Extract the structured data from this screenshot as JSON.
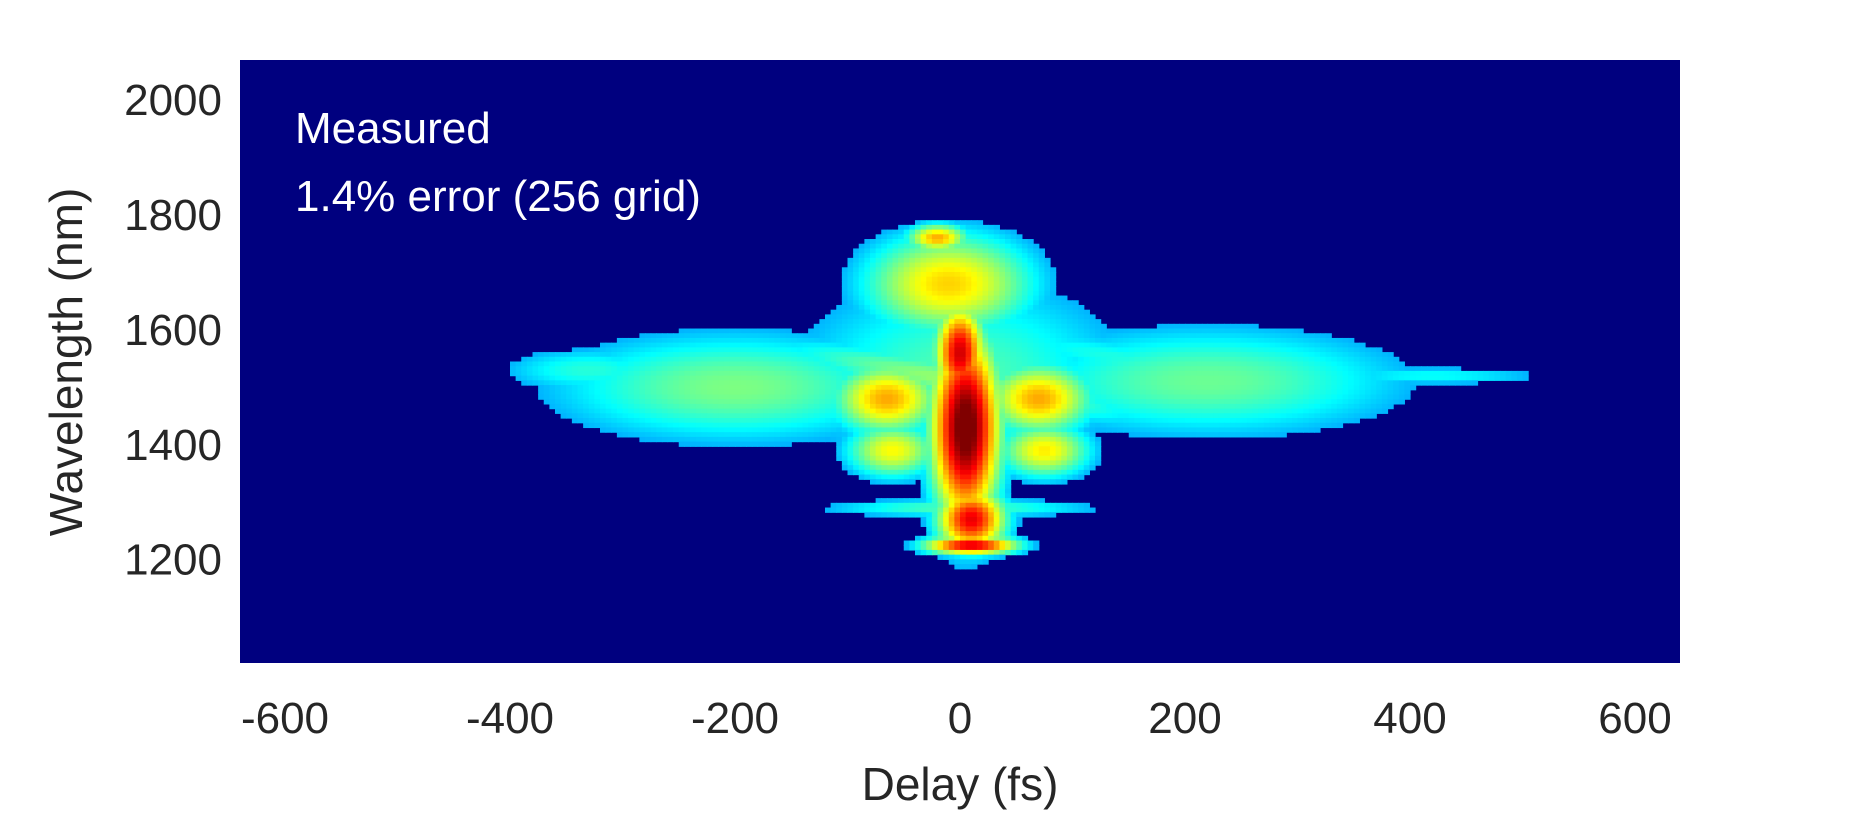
{
  "chart_data": {
    "type": "heatmap",
    "xlabel": "Delay (fs)",
    "ylabel": "Wavelength (nm)",
    "xlim": [
      -640,
      640
    ],
    "ylim": [
      1020,
      2070
    ],
    "xticks": [
      -600,
      -400,
      -200,
      0,
      200,
      400,
      600
    ],
    "yticks": [
      1200,
      1400,
      1600,
      1800,
      2000
    ],
    "annotations": [
      "Measured",
      "1.4% error (256 grid)"
    ],
    "colormap": "jet",
    "background_color": "#00007f",
    "grid": false,
    "legend": "none",
    "features": [
      {
        "name": "central_core",
        "delay_fs": 5,
        "wavelength_nm": 1430,
        "delay_width_fs": 22,
        "wavelength_width_nm": 120,
        "intensity": 1.0
      },
      {
        "name": "core_upper",
        "delay_fs": 0,
        "wavelength_nm": 1560,
        "delay_width_fs": 16,
        "wavelength_width_nm": 60,
        "intensity": 0.85
      },
      {
        "name": "core_lower",
        "delay_fs": 10,
        "wavelength_nm": 1270,
        "delay_width_fs": 22,
        "wavelength_width_nm": 40,
        "intensity": 0.82
      },
      {
        "name": "blue_tip",
        "delay_fs": 10,
        "wavelength_nm": 1225,
        "delay_width_fs": 30,
        "wavelength_width_nm": 12,
        "intensity": 0.85
      },
      {
        "name": "upper_cone",
        "delay_fs": -10,
        "wavelength_nm": 1680,
        "delay_width_fs": 55,
        "wavelength_width_nm": 65,
        "intensity": 0.55
      },
      {
        "name": "upper_cone_top",
        "delay_fs": -20,
        "wavelength_nm": 1760,
        "delay_width_fs": 20,
        "wavelength_width_nm": 18,
        "intensity": 0.6
      },
      {
        "name": "left_lobe",
        "delay_fs": -65,
        "wavelength_nm": 1480,
        "delay_width_fs": 35,
        "wavelength_width_nm": 45,
        "intensity": 0.6
      },
      {
        "name": "right_lobe",
        "delay_fs": 70,
        "wavelength_nm": 1480,
        "delay_width_fs": 35,
        "wavelength_width_nm": 45,
        "intensity": 0.6
      },
      {
        "name": "left_low_lobe",
        "delay_fs": -60,
        "wavelength_nm": 1390,
        "delay_width_fs": 30,
        "wavelength_width_nm": 35,
        "intensity": 0.5
      },
      {
        "name": "right_low_lobe",
        "delay_fs": 75,
        "wavelength_nm": 1390,
        "delay_width_fs": 30,
        "wavelength_width_nm": 35,
        "intensity": 0.52
      },
      {
        "name": "left_wing",
        "delay_fs": -200,
        "wavelength_nm": 1500,
        "delay_width_fs": 120,
        "wavelength_width_nm": 70,
        "intensity": 0.35
      },
      {
        "name": "right_wing",
        "delay_fs": 220,
        "wavelength_nm": 1510,
        "delay_width_fs": 130,
        "wavelength_width_nm": 70,
        "intensity": 0.33
      },
      {
        "name": "far_left_wing",
        "delay_fs": -330,
        "wavelength_nm": 1530,
        "delay_width_fs": 60,
        "wavelength_width_nm": 30,
        "intensity": 0.25
      },
      {
        "name": "far_right_tail",
        "delay_fs": 420,
        "wavelength_nm": 1520,
        "delay_width_fs": 80,
        "wavelength_width_nm": 12,
        "intensity": 0.22
      },
      {
        "name": "mid_halo",
        "delay_fs": 0,
        "wavelength_nm": 1520,
        "delay_width_fs": 110,
        "wavelength_width_nm": 130,
        "intensity": 0.3
      },
      {
        "name": "low_spur",
        "delay_fs": 0,
        "wavelength_nm": 1290,
        "delay_width_fs": 90,
        "wavelength_width_nm": 12,
        "intensity": 0.3
      }
    ],
    "fringes": {
      "delay_range_fs": [
        -420,
        530
      ],
      "wavelength_range_nm": [
        1370,
        1650
      ],
      "intensity": 0.2
    }
  }
}
